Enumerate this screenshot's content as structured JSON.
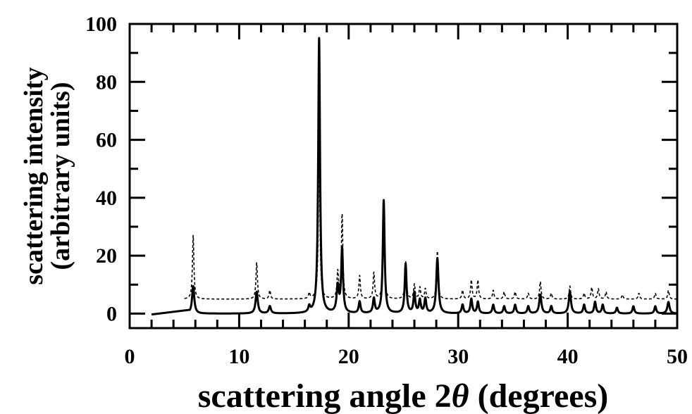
{
  "chart_data": {
    "type": "line",
    "xlabel_main": "scattering angle 2",
    "xlabel_symbol": "θ",
    "xlabel_units": " (degrees)",
    "ylabel_line1": "scattering intensity",
    "ylabel_line2": "(arbitrary units)",
    "xlim": [
      0,
      50
    ],
    "ylim": [
      -5,
      100
    ],
    "x_ticks": [
      0,
      10,
      20,
      30,
      40,
      50
    ],
    "x_tick_labels": [
      "0",
      "10",
      "20",
      "30",
      "40",
      "50"
    ],
    "y_ticks": [
      0,
      20,
      40,
      60,
      80,
      100
    ],
    "y_tick_labels": [
      "0",
      "20",
      "40",
      "60",
      "80",
      "100"
    ],
    "grid": false,
    "series": [
      {
        "style": "solid",
        "baseline": 0,
        "base_start": [
          [
            2.0,
            -0.3
          ],
          [
            5.5,
            1.0
          ]
        ],
        "peaks": [
          [
            5.8,
            9.5,
            0.12
          ],
          [
            11.6,
            7.5,
            0.12
          ],
          [
            12.8,
            2.5,
            0.12
          ],
          [
            16.4,
            2.0,
            0.1
          ],
          [
            17.3,
            95.0,
            0.1
          ],
          [
            19.0,
            9.0,
            0.12
          ],
          [
            19.4,
            22.0,
            0.1
          ],
          [
            21.0,
            4.0,
            0.1
          ],
          [
            22.3,
            5.0,
            0.1
          ],
          [
            23.2,
            39.0,
            0.1
          ],
          [
            25.2,
            17.0,
            0.1
          ],
          [
            26.0,
            7.0,
            0.1
          ],
          [
            26.5,
            4.5,
            0.1
          ],
          [
            27.0,
            5.0,
            0.1
          ],
          [
            28.1,
            19.0,
            0.12
          ],
          [
            30.4,
            3.0,
            0.1
          ],
          [
            31.2,
            5.0,
            0.1
          ],
          [
            31.8,
            4.0,
            0.1
          ],
          [
            33.2,
            3.0,
            0.1
          ],
          [
            34.2,
            2.5,
            0.1
          ],
          [
            35.2,
            3.0,
            0.1
          ],
          [
            36.4,
            2.5,
            0.1
          ],
          [
            37.5,
            6.5,
            0.12
          ],
          [
            38.5,
            2.5,
            0.1
          ],
          [
            40.2,
            7.5,
            0.12
          ],
          [
            41.5,
            3.0,
            0.1
          ],
          [
            42.5,
            4.0,
            0.1
          ],
          [
            43.2,
            3.0,
            0.1
          ],
          [
            44.5,
            2.0,
            0.1
          ],
          [
            46.0,
            2.5,
            0.1
          ],
          [
            48.0,
            2.5,
            0.1
          ],
          [
            49.2,
            4.0,
            0.12
          ]
        ]
      },
      {
        "style": "dashed",
        "baseline": 5,
        "base_start": [
          [
            5.0,
            5.0
          ]
        ],
        "peaks": [
          [
            5.8,
            22.0,
            0.08
          ],
          [
            11.6,
            12.5,
            0.08
          ],
          [
            12.8,
            3.0,
            0.08
          ],
          [
            16.4,
            2.0,
            0.08
          ],
          [
            17.3,
            55.0,
            0.08
          ],
          [
            19.0,
            9.0,
            0.08
          ],
          [
            19.4,
            29.0,
            0.08
          ],
          [
            21.0,
            8.0,
            0.08
          ],
          [
            22.3,
            9.0,
            0.08
          ],
          [
            23.2,
            28.0,
            0.08
          ],
          [
            25.2,
            13.0,
            0.08
          ],
          [
            26.0,
            5.0,
            0.08
          ],
          [
            26.5,
            4.0,
            0.08
          ],
          [
            27.0,
            3.5,
            0.08
          ],
          [
            28.1,
            16.5,
            0.08
          ],
          [
            30.4,
            3.0,
            0.08
          ],
          [
            31.2,
            6.5,
            0.08
          ],
          [
            31.8,
            6.5,
            0.08
          ],
          [
            33.2,
            3.0,
            0.08
          ],
          [
            34.2,
            2.5,
            0.08
          ],
          [
            35.2,
            2.5,
            0.08
          ],
          [
            36.4,
            2.0,
            0.08
          ],
          [
            37.5,
            6.0,
            0.08
          ],
          [
            38.5,
            2.0,
            0.08
          ],
          [
            40.2,
            4.5,
            0.08
          ],
          [
            41.5,
            2.0,
            0.08
          ],
          [
            42.2,
            4.0,
            0.08
          ],
          [
            42.8,
            3.5,
            0.08
          ],
          [
            43.5,
            2.5,
            0.08
          ],
          [
            45.0,
            1.5,
            0.08
          ],
          [
            46.5,
            2.0,
            0.08
          ],
          [
            48.0,
            2.0,
            0.08
          ],
          [
            49.2,
            3.0,
            0.08
          ]
        ]
      }
    ]
  }
}
